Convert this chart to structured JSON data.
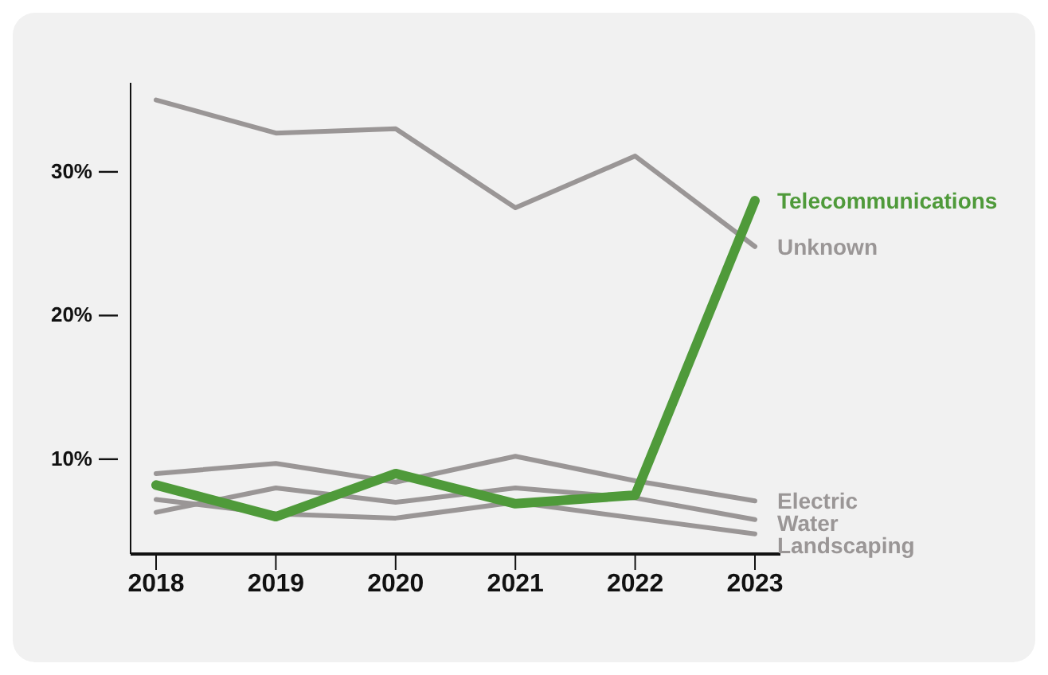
{
  "chart_data": {
    "type": "line",
    "categories": [
      "2018",
      "2019",
      "2020",
      "2021",
      "2022",
      "2023"
    ],
    "series": [
      {
        "name": "Unknown",
        "color": "#9a9696",
        "values": [
          35.0,
          32.7,
          33.0,
          27.5,
          31.1,
          24.8
        ]
      },
      {
        "name": "Electric",
        "color": "#9a9696",
        "values": [
          9.0,
          9.7,
          8.4,
          10.2,
          8.5,
          7.1
        ]
      },
      {
        "name": "Water",
        "color": "#9a9696",
        "values": [
          6.3,
          8.0,
          7.0,
          8.0,
          7.3,
          5.8
        ]
      },
      {
        "name": "Landscaping",
        "color": "#9a9696",
        "values": [
          7.2,
          6.2,
          5.9,
          7.0,
          5.9,
          4.8
        ]
      },
      {
        "name": "Telecommunications",
        "color": "#4f9a3a",
        "values": [
          8.2,
          6.0,
          9.0,
          6.9,
          7.5,
          28.0
        ]
      }
    ],
    "ylim": [
      3.4,
      36.2
    ],
    "yticks": [
      {
        "value": 10,
        "label": "10%"
      },
      {
        "value": 20,
        "label": "20%"
      },
      {
        "value": 30,
        "label": "30%"
      }
    ],
    "grid": false,
    "legend": false,
    "marker": "none",
    "line_style": "solid"
  }
}
